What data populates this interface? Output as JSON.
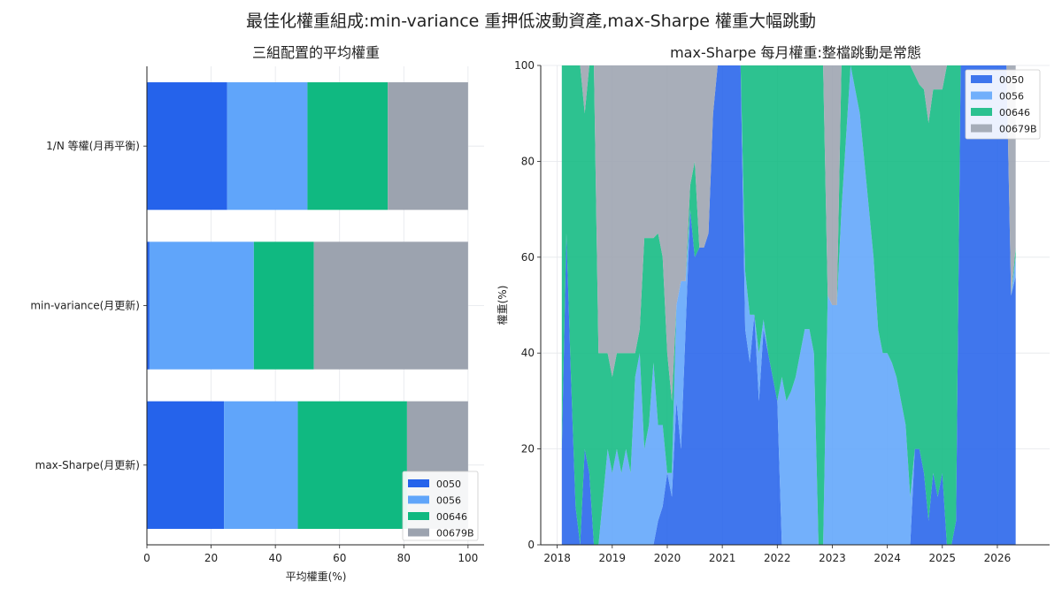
{
  "title": "最佳化權重組成:min-variance 重押低波動資產,max-Sharpe 權重大幅跳動",
  "colors": {
    "0050": "#2563eb",
    "0056": "#60a5fa",
    "00646": "#10b981",
    "00679B": "#9ca3af"
  },
  "chart_data": [
    {
      "type": "bar",
      "orientation": "horizontal",
      "stacked": true,
      "title": "三組配置的平均權重",
      "xlabel": "平均權重(%)",
      "ylabel": "",
      "xlim": [
        0,
        105
      ],
      "xticks": [
        0,
        20,
        40,
        60,
        80,
        100
      ],
      "grid": true,
      "legend_position": "lower-right",
      "categories": [
        "1/N 等權(月再平衡)",
        "min-variance(月更新)",
        "max-Sharpe(月更新)"
      ],
      "series": [
        {
          "name": "0050",
          "color": "#2563eb",
          "values": [
            25,
            0.8,
            24
          ]
        },
        {
          "name": "0056",
          "color": "#60a5fa",
          "values": [
            25,
            32.5,
            23
          ]
        },
        {
          "name": "00646",
          "color": "#10b981",
          "values": [
            25,
            18.7,
            34
          ]
        },
        {
          "name": "00679B",
          "color": "#9ca3af",
          "values": [
            25,
            48,
            19
          ]
        }
      ]
    },
    {
      "type": "area",
      "stacked": true,
      "title": "max-Sharpe 每月權重:整檔跳動是常態",
      "xlabel": "",
      "ylabel": "權重(%)",
      "ylim": [
        0,
        100
      ],
      "xlim": [
        2017.7,
        2026.95
      ],
      "xticks": [
        2018,
        2019,
        2020,
        2021,
        2022,
        2023,
        2024,
        2025,
        2026
      ],
      "yticks": [
        0,
        20,
        40,
        60,
        80,
        100
      ],
      "grid": true,
      "legend_position": "top-right",
      "x_start": 2018.083,
      "x_step_months": 1,
      "series": [
        {
          "name": "0050",
          "color": "#2563eb",
          "values": [
            20,
            65,
            35,
            8,
            0,
            20,
            15,
            0,
            0,
            0,
            0,
            0,
            0,
            0,
            0,
            0,
            0,
            0,
            0,
            0,
            0,
            5,
            8,
            15,
            10,
            30,
            20,
            45,
            70,
            60,
            62,
            62,
            65,
            90,
            100,
            100,
            100,
            100,
            100,
            100,
            45,
            38,
            48,
            30,
            45,
            40,
            35,
            30,
            0,
            0,
            0,
            0,
            0,
            0,
            0,
            0,
            0,
            0,
            0,
            0,
            0,
            0,
            0,
            0,
            0,
            0,
            0,
            0,
            0,
            0,
            0,
            0,
            0,
            0,
            0,
            0,
            0,
            20,
            20,
            15,
            5,
            15,
            10,
            15,
            0,
            0,
            5,
            100,
            100,
            100,
            100,
            100,
            100,
            100,
            100,
            100,
            100,
            100,
            52,
            56
          ]
        },
        {
          "name": "0056",
          "color": "#60a5fa",
          "values": [
            0,
            0,
            0,
            0,
            0,
            0,
            0,
            0,
            0,
            10,
            20,
            15,
            20,
            15,
            20,
            15,
            35,
            40,
            20,
            25,
            38,
            20,
            17,
            0,
            5,
            20,
            35,
            10,
            0,
            0,
            0,
            0,
            0,
            0,
            0,
            0,
            0,
            0,
            0,
            0,
            12,
            10,
            0,
            10,
            2,
            0,
            0,
            0,
            35,
            30,
            32,
            35,
            40,
            45,
            45,
            40,
            0,
            0,
            52,
            50,
            50,
            70,
            85,
            100,
            95,
            90,
            80,
            70,
            60,
            45,
            40,
            40,
            38,
            35,
            30,
            25,
            10,
            0,
            0,
            0,
            0,
            0,
            0,
            0,
            0,
            0,
            0,
            0,
            0,
            0,
            0,
            0,
            0,
            0,
            0,
            0,
            0,
            0,
            0,
            4
          ]
        },
        {
          "name": "00646",
          "color": "#10b981",
          "values": [
            80,
            35,
            65,
            92,
            100,
            70,
            85,
            100,
            40,
            30,
            20,
            20,
            20,
            25,
            20,
            25,
            5,
            5,
            44,
            39,
            26,
            40,
            35,
            25,
            15,
            0,
            0,
            0,
            5,
            20,
            0,
            0,
            0,
            0,
            0,
            0,
            0,
            0,
            0,
            0,
            43,
            52,
            52,
            60,
            53,
            60,
            65,
            70,
            65,
            70,
            68,
            65,
            60,
            55,
            55,
            60,
            100,
            100,
            0,
            0,
            0,
            30,
            15,
            0,
            5,
            10,
            20,
            30,
            40,
            55,
            60,
            60,
            62,
            65,
            70,
            75,
            90,
            78,
            76,
            80,
            83,
            80,
            85,
            80,
            100,
            100,
            95,
            0,
            0,
            0,
            0,
            0,
            0,
            0,
            0,
            0,
            0,
            0,
            0,
            2
          ]
        }
      ]
    }
  ],
  "legend": {
    "labels": [
      "0050",
      "0056",
      "00646",
      "00679B"
    ]
  }
}
